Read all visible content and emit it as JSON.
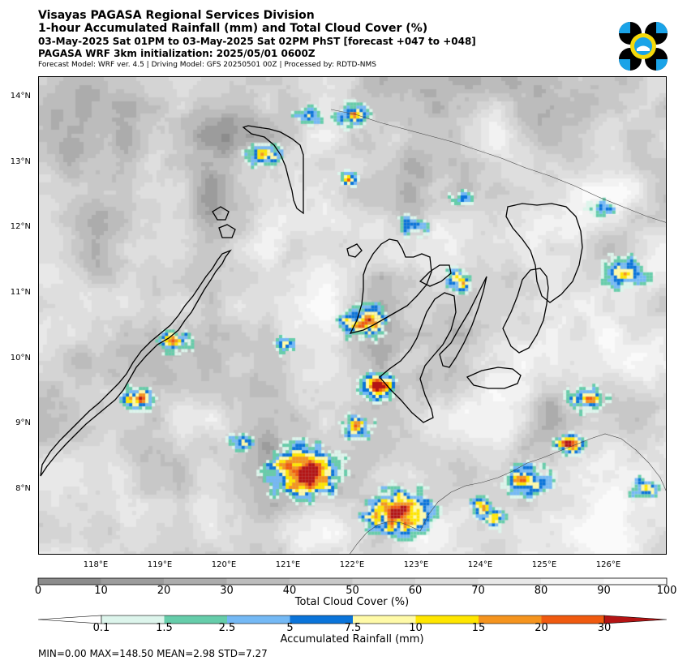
{
  "header": {
    "title": "Visayas PAGASA Regional Services Division",
    "subtitle": "1-hour Accumulated Rainfall (mm) and Total Cloud Cover (%)",
    "valid_time": "03-May-2025 Sat 01PM to 03-May-2025 Sat 02PM PhST [forecast +047 to +048]",
    "init": "PAGASA WRF 3km initialization: 2025/05/01 0600Z",
    "model_info": "Forecast Model: WRF ver. 4.5 | Driving Model: GFS 20250501 00Z | Processed by: RDTD-NMS"
  },
  "map": {
    "lat_labels": [
      "14°N",
      "13°N",
      "12°N",
      "11°N",
      "10°N",
      "9°N",
      "8°N"
    ],
    "lon_labels": [
      "118°E",
      "119°E",
      "120°E",
      "121°E",
      "122°E",
      "123°E",
      "124°E",
      "125°E",
      "126°E"
    ]
  },
  "cloud_colorbar": {
    "title": "Total Cloud Cover (%)",
    "ticks": [
      "0",
      "10",
      "20",
      "30",
      "40",
      "50",
      "60",
      "70",
      "80",
      "90",
      "100"
    ],
    "colors": [
      "#8c8c8c",
      "#9c9c9c",
      "#acacac",
      "#bcbcbc",
      "#c8c8c8",
      "#d4d4d4",
      "#dedede",
      "#e8e8e8",
      "#f2f2f2",
      "#fafafa"
    ]
  },
  "rain_colorbar": {
    "title": "Accumulated Rainfall (mm)",
    "ticks": [
      "0.1",
      "1.5",
      "2.5",
      "5",
      "7.5",
      "10",
      "15",
      "20",
      "30"
    ],
    "under_color": "#ffffff",
    "colors": [
      "#ddf5ec",
      "#66cdaa",
      "#74b9f5",
      "#0a74da",
      "#fffaa8",
      "#ffe600",
      "#f5941e",
      "#f05a0f"
    ],
    "over_color": "#b41414"
  },
  "stats": "MIN=0.00   MAX=148.50   MEAN=2.98   STD=7.27"
}
